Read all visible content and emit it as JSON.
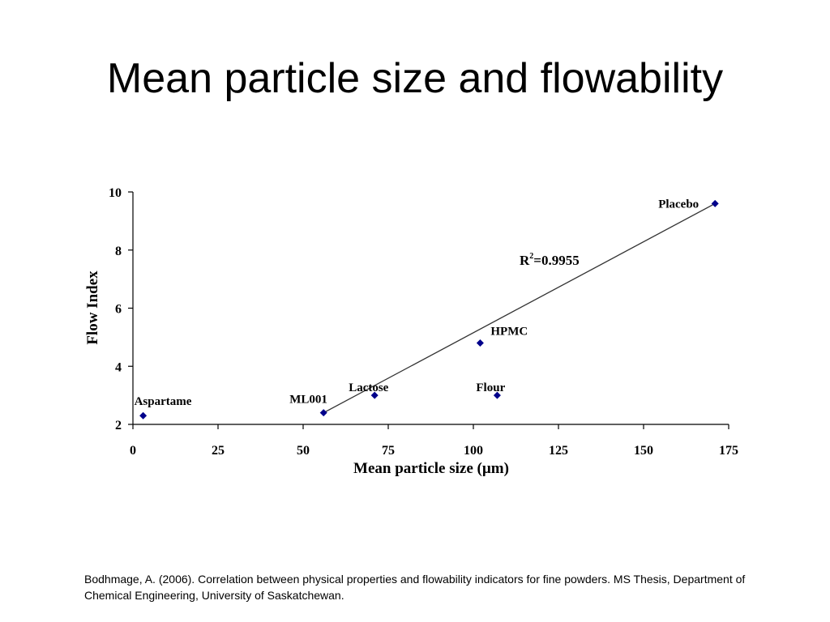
{
  "slide": {
    "title": "Mean particle size and flowability",
    "citation": "Bodhmage, A. (2006). Correlation between physical properties and flowability indicators for fine powders. MS Thesis, Department of Chemical Engineering, University of Saskatchewan."
  },
  "chart_data": {
    "type": "scatter",
    "title": "",
    "xlabel": "Mean particle size (µm)",
    "ylabel": "Flow Index",
    "xlim": [
      0,
      175
    ],
    "ylim": [
      2,
      10
    ],
    "xticks": [
      0,
      25,
      50,
      75,
      100,
      125,
      150,
      175
    ],
    "yticks": [
      2,
      4,
      6,
      8,
      10
    ],
    "grid": false,
    "legend": "none",
    "marker_color": "#00008b",
    "points": [
      {
        "label": "Aspartame",
        "x": 3,
        "y": 2.3
      },
      {
        "label": "ML001",
        "x": 56,
        "y": 2.4
      },
      {
        "label": "Lactose",
        "x": 71,
        "y": 3.0
      },
      {
        "label": "HPMC",
        "x": 102,
        "y": 4.8
      },
      {
        "label": "Flour",
        "x": 107,
        "y": 3.0
      },
      {
        "label": "Placebo",
        "x": 171,
        "y": 9.6
      }
    ],
    "trendline": {
      "from": {
        "x": 56,
        "y": 2.4
      },
      "to": {
        "x": 171,
        "y": 9.6
      },
      "r2_label": "R",
      "r2_superscript": "2",
      "r2_value": "=0.9955"
    }
  }
}
